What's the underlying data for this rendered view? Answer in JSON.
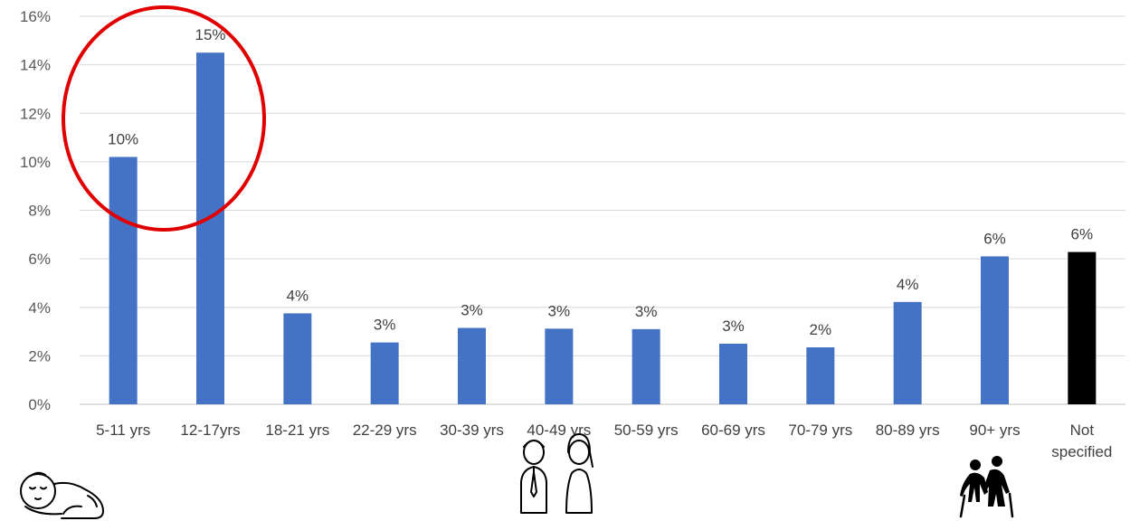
{
  "chart_data": {
    "type": "bar",
    "categories": [
      "5-11 yrs",
      "12-17yrs",
      "18-21 yrs",
      "22-29 yrs",
      "30-39 yrs",
      "40-49 yrs",
      "50-59 yrs",
      "60-69 yrs",
      "70-79 yrs",
      "80-89 yrs",
      "90+ yrs",
      "Not specified"
    ],
    "category_lines": [
      [
        "5-11 yrs"
      ],
      [
        "12-17yrs"
      ],
      [
        "18-21 yrs"
      ],
      [
        "22-29 yrs"
      ],
      [
        "30-39 yrs"
      ],
      [
        "40-49 yrs"
      ],
      [
        "50-59 yrs"
      ],
      [
        "60-69 yrs"
      ],
      [
        "70-79 yrs"
      ],
      [
        "80-89 yrs"
      ],
      [
        "90+ yrs"
      ],
      [
        "Not",
        "specified"
      ]
    ],
    "values": [
      10.2,
      14.5,
      3.75,
      2.55,
      3.15,
      3.12,
      3.1,
      2.5,
      2.35,
      4.22,
      6.1,
      6.28
    ],
    "data_labels": [
      "10%",
      "15%",
      "4%",
      "3%",
      "3%",
      "3%",
      "3%",
      "3%",
      "2%",
      "4%",
      "6%",
      "6%"
    ],
    "bar_colors": [
      "#4472c4",
      "#4472c4",
      "#4472c4",
      "#4472c4",
      "#4472c4",
      "#4472c4",
      "#4472c4",
      "#4472c4",
      "#4472c4",
      "#4472c4",
      "#4472c4",
      "#000000"
    ],
    "ylim": [
      0,
      16
    ],
    "yticks": [
      0,
      2,
      4,
      6,
      8,
      10,
      12,
      14,
      16
    ],
    "ytick_labels": [
      "0%",
      "2%",
      "4%",
      "6%",
      "8%",
      "10%",
      "12%",
      "14%",
      "16%"
    ],
    "grid": true,
    "title": "",
    "xlabel": "",
    "ylabel": "",
    "annotations": [
      {
        "type": "ellipse",
        "color": "#e00000",
        "encloses": [
          "5-11 yrs",
          "12-17yrs"
        ]
      }
    ],
    "icons": [
      "sleeping-baby-icon",
      "man-and-woman-icon",
      "elderly-couple-with-canes-icon"
    ]
  }
}
